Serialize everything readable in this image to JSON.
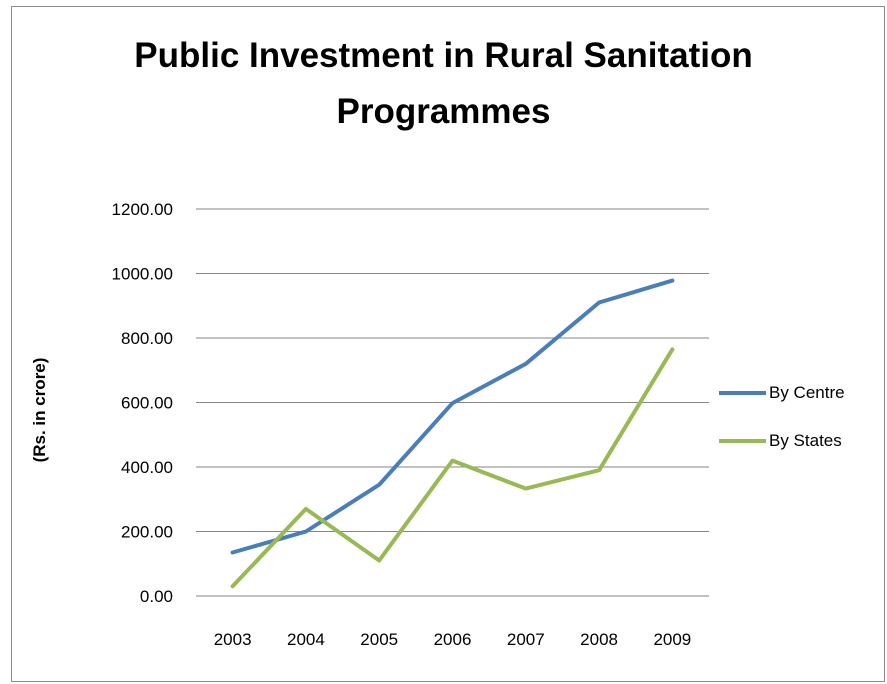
{
  "chart_data": {
    "type": "line",
    "title_lines": [
      "Public Investment in Rural Sanitation",
      "Programmes"
    ],
    "xlabel": "",
    "ylabel": "(Rs. in crore)",
    "categories": [
      "2003",
      "2004",
      "2005",
      "2006",
      "2007",
      "2008",
      "2009"
    ],
    "y_ticks": [
      "0.00",
      "200.00",
      "400.00",
      "600.00",
      "800.00",
      "1000.00",
      "1200.00"
    ],
    "ylim": [
      0,
      1200
    ],
    "grid": true,
    "legend_position": "right",
    "series": [
      {
        "name": "By Centre",
        "color": "#4a7ebb",
        "values": [
          135,
          200,
          345,
          598,
          720,
          910,
          978
        ]
      },
      {
        "name": "By States",
        "color": "#98b954",
        "values": [
          30,
          270,
          110,
          420,
          333,
          390,
          765
        ]
      }
    ]
  }
}
